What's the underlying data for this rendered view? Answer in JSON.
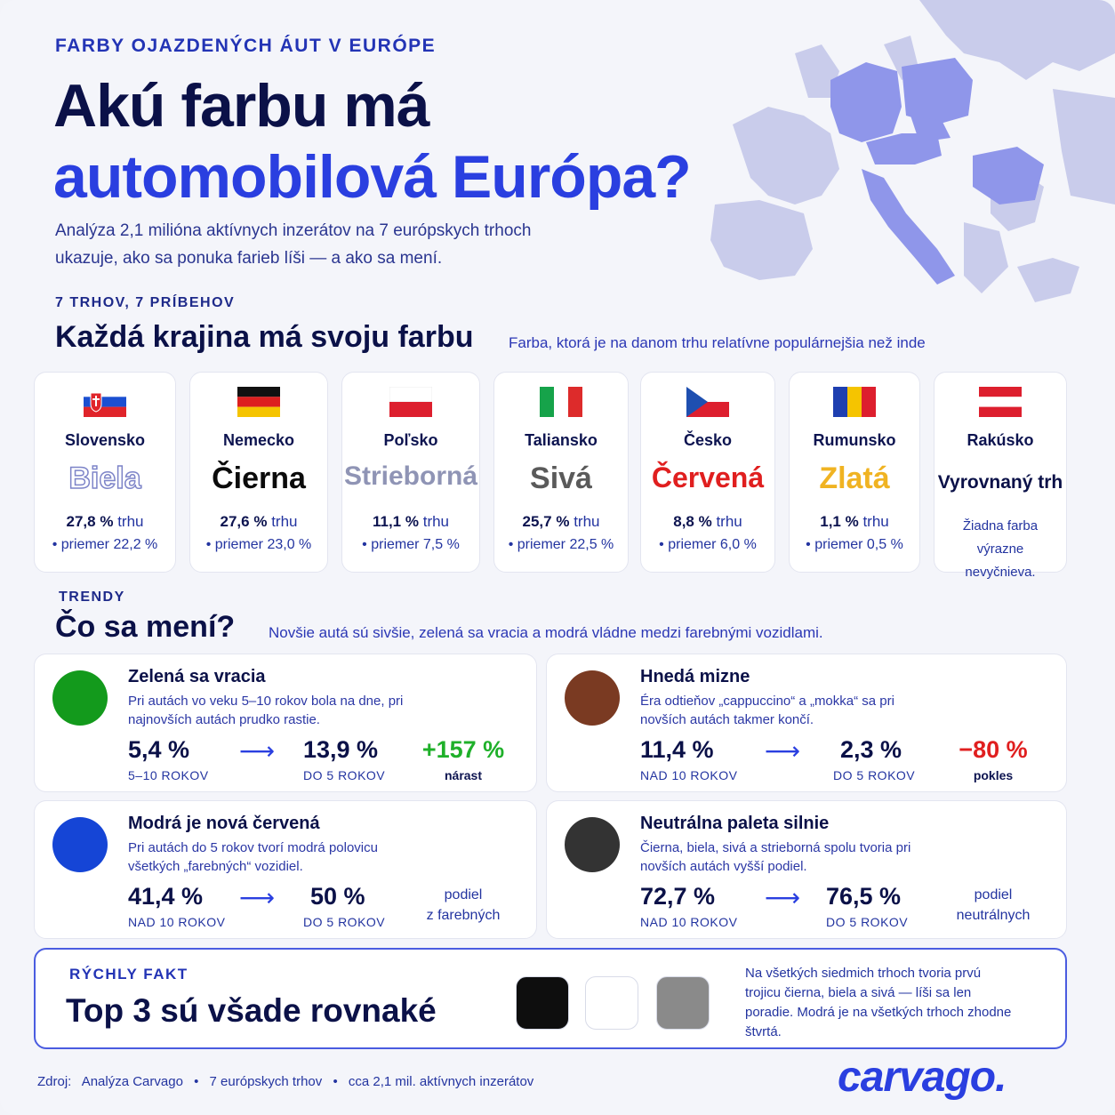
{
  "header": {
    "eyebrow": "FARBY OJAZDENÝCH ÁUT V EURÓPE",
    "title_line1": "Akú farbu má",
    "title_line2": "automobilová Európa?",
    "intro": "Analýza 2,1 milióna aktívnych inzerátov na 7 európskych trhoch ukazuje, ako sa ponuka farieb líši — a ako sa mení."
  },
  "countries_section": {
    "eyebrow": "7 TRHOV, 7 PRÍBEHOV",
    "title": "Každá krajina má svoju farbu",
    "subtitle": "Farba, ktorá je na danom trhu relatívne populárnejšia než inde",
    "items": [
      {
        "name": "Slovensko",
        "color_name": "Biela",
        "stat_value": "27,8 %",
        "stat_unit": "trhu",
        "avg": "• priemer 22,2 %",
        "color_hex": "#ffffff"
      },
      {
        "name": "Nemecko",
        "color_name": "Čierna",
        "stat_value": "27,6 %",
        "stat_unit": "trhu",
        "avg": "• priemer 23,0 %",
        "color_hex": "#0b0b0b"
      },
      {
        "name": "Poľsko",
        "color_name": "Strieborná",
        "stat_value": "11,1 %",
        "stat_unit": "trhu",
        "avg": "• priemer 7,5 %",
        "color_hex": "#8f94b5"
      },
      {
        "name": "Taliansko",
        "color_name": "Sivá",
        "stat_value": "25,7 %",
        "stat_unit": "trhu",
        "avg": "• priemer 22,5 %",
        "color_hex": "#5a5a5a"
      },
      {
        "name": "Česko",
        "color_name": "Červená",
        "stat_value": "8,8 %",
        "stat_unit": "trhu",
        "avg": "• priemer 6,0 %",
        "color_hex": "#e01f1f"
      },
      {
        "name": "Rumunsko",
        "color_name": "Zlatá",
        "stat_value": "1,1 %",
        "stat_unit": "trhu",
        "avg": "• priemer 0,5 %",
        "color_hex": "#f0b322"
      },
      {
        "name": "Rakúsko",
        "color_name": "Vyrovnaný trh",
        "stat_value": "",
        "stat_unit": "",
        "avg": "",
        "note": "Žiadna farba výrazne nevyčnieva.",
        "color_hex": "#0b1148"
      }
    ]
  },
  "trends_section": {
    "eyebrow": "TRENDY",
    "title": "Čo sa mení?",
    "subtitle": "Novšie autá sú sivšie, zelená sa vracia a modrá vládne medzi farebnými vozidlami.",
    "items": [
      {
        "title": "Zelená sa vracia",
        "desc": "Pri autách vo veku 5–10 rokov bola na dne, pri najnovších autách prudko rastie.",
        "v1": "5,4 %",
        "l1": "5–10 ROKOV",
        "v2": "13,9 %",
        "l2": "DO 5 ROKOV",
        "change": "+157 %",
        "change_label": "nárast",
        "change_color": "#1fb02a",
        "dot_color": "#139a1c"
      },
      {
        "title": "Hnedá mizne",
        "desc": "Éra odtieňov „cappuccino“ a „mokka“ sa pri novších autách takmer končí.",
        "v1": "11,4 %",
        "l1": "NAD 10 ROKOV",
        "v2": "2,3 %",
        "l2": "DO 5 ROKOV",
        "change": "−80 %",
        "change_label": "pokles",
        "change_color": "#e01f1f",
        "dot_color": "#7a3a22"
      },
      {
        "title": "Modrá je nová červená",
        "desc": "Pri autách do 5 rokov tvorí modrá polovicu všetkých „farebných“ vozidiel.",
        "v1": "41,4 %",
        "l1": "NAD 10 ROKOV",
        "v2": "50 %",
        "l2": "DO 5 ROKOV",
        "share_line1": "podiel",
        "share_line2": "z farebných",
        "dot_color": "#1545d6"
      },
      {
        "title": "Neutrálna paleta silnie",
        "desc": "Čierna, biela, sivá a strieborná spolu tvoria pri novších autách vyšší podiel.",
        "v1": "72,7 %",
        "l1": "NAD 10 ROKOV",
        "v2": "76,5 %",
        "l2": "DO 5 ROKOV",
        "share_line1": "podiel",
        "share_line2": "neutrálnych",
        "dot_color": "#333333"
      }
    ]
  },
  "fact": {
    "eyebrow": "RÝCHLY FAKT",
    "title": "Top 3 sú všade rovnaké",
    "swatch_colors": [
      "#0e0e0e",
      "#ffffff",
      "#8a8a8a"
    ],
    "text": "Na všetkých siedmich trhoch tvoria prvú trojicu čierna, biela a sivá — líši sa len poradie. Modrá je na všetkých trhoch zhodne štvrtá."
  },
  "footer": {
    "source_label": "Zdroj:",
    "source_parts": [
      "Analýza Carvago",
      "•",
      "7 európskych trhov",
      "•",
      "cca 2,1 mil. aktívnych inzerátov"
    ],
    "logo": "carvago."
  },
  "colors": {
    "accent": "#2a3fe0",
    "navy": "#0b1148",
    "map_light": "#c5c8ea",
    "map_highlight": "#8f96ea"
  }
}
